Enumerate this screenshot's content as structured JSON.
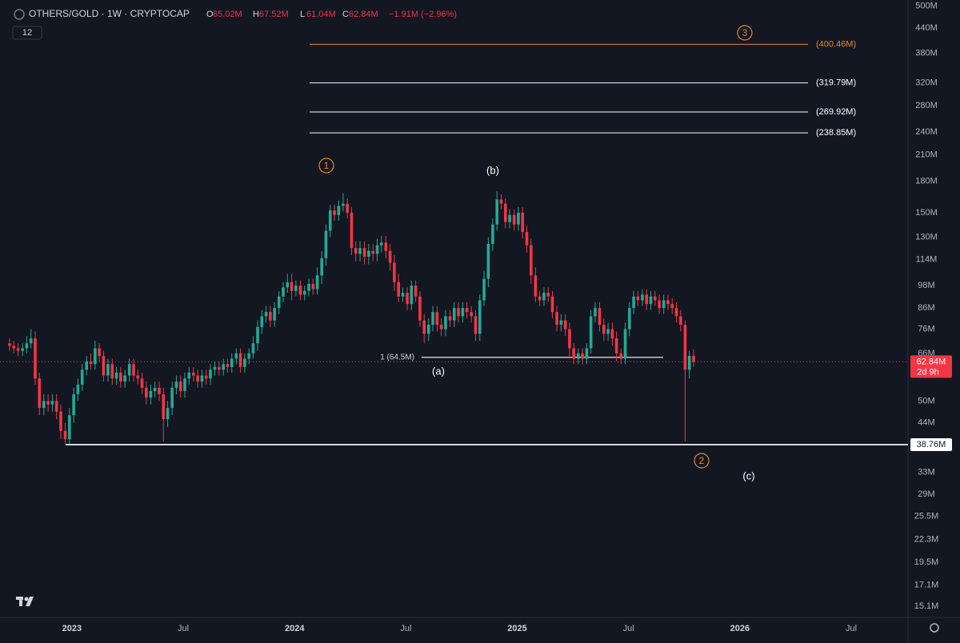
{
  "chart_data": {
    "type": "candlestick",
    "log_scale": true,
    "grid": false,
    "up_color": "#22ab94",
    "down_color": "#f23645",
    "header": {
      "symbol": "OTHERS/GOLD · 1W · CRYPTOCAP",
      "badge": "12",
      "ohlc": [
        {
          "key": "O",
          "text": "65.02M"
        },
        {
          "key": "H",
          "text": "67.52M"
        },
        {
          "key": "L",
          "text": "61.04M"
        },
        {
          "key": "C",
          "text": "62.84M"
        }
      ],
      "change": "−1.91M (−2.96%)"
    },
    "xlim": [
      2022.677,
      2026.755
    ],
    "ylim": [
      14.28,
      518.6
    ],
    "xticks": [
      2023,
      {
        "value": 2023.5,
        "label": "Jul"
      },
      2024,
      {
        "value": 2024.5,
        "label": "Jul"
      },
      2025,
      {
        "value": 2025.5,
        "label": "Jul"
      },
      2026,
      {
        "value": 2026.5,
        "label": "Jul"
      }
    ],
    "yticks": [
      {
        "value": 500,
        "label": "500M"
      },
      {
        "value": 440,
        "label": "440M"
      },
      {
        "value": 380,
        "label": "380M"
      },
      {
        "value": 320,
        "label": "320M"
      },
      {
        "value": 280,
        "label": "280M"
      },
      {
        "value": 240,
        "label": "240M"
      },
      {
        "value": 210,
        "label": "210M"
      },
      {
        "value": 180,
        "label": "180M"
      },
      {
        "value": 150,
        "label": "150M"
      },
      {
        "value": 130,
        "label": "130M"
      },
      {
        "value": 114,
        "label": "114M"
      },
      {
        "value": 98,
        "label": "98M"
      },
      {
        "value": 86,
        "label": "86M"
      },
      {
        "value": 76,
        "label": "76M"
      },
      {
        "value": 66,
        "label": "66M"
      },
      {
        "value": 58,
        "label": "58M"
      },
      {
        "value": 50,
        "label": "50M"
      },
      {
        "value": 44,
        "label": "44M"
      },
      {
        "value": 38,
        "label": "38M"
      },
      {
        "value": 33,
        "label": "33M"
      },
      {
        "value": 29,
        "label": "29M"
      },
      {
        "value": 25.5,
        "label": "25.5M"
      },
      {
        "value": 22.3,
        "label": "22.3M"
      },
      {
        "value": 19.5,
        "label": "19.5M"
      },
      {
        "value": 17.1,
        "label": "17.1M"
      },
      {
        "value": 15.1,
        "label": "15.1M"
      }
    ],
    "x": [
      2022.72,
      2022.739,
      2022.758,
      2022.778,
      2022.797,
      2022.816,
      2022.835,
      2022.854,
      2022.874,
      2022.893,
      2022.912,
      2022.931,
      2022.95,
      2022.97,
      2022.989,
      2023.008,
      2023.027,
      2023.046,
      2023.066,
      2023.085,
      2023.104,
      2023.123,
      2023.142,
      2023.162,
      2023.181,
      2023.2,
      2023.219,
      2023.238,
      2023.258,
      2023.277,
      2023.296,
      2023.315,
      2023.334,
      2023.354,
      2023.373,
      2023.392,
      2023.411,
      2023.43,
      2023.45,
      2023.469,
      2023.488,
      2023.507,
      2023.526,
      2023.546,
      2023.565,
      2023.584,
      2023.603,
      2023.622,
      2023.642,
      2023.661,
      2023.68,
      2023.699,
      2023.718,
      2023.738,
      2023.757,
      2023.776,
      2023.795,
      2023.814,
      2023.834,
      2023.853,
      2023.872,
      2023.891,
      2023.91,
      2023.93,
      2023.949,
      2023.968,
      2023.987,
      2024.006,
      2024.026,
      2024.045,
      2024.064,
      2024.083,
      2024.102,
      2024.122,
      2024.141,
      2024.16,
      2024.179,
      2024.198,
      2024.218,
      2024.237,
      2024.256,
      2024.275,
      2024.294,
      2024.314,
      2024.333,
      2024.352,
      2024.371,
      2024.39,
      2024.41,
      2024.429,
      2024.448,
      2024.467,
      2024.486,
      2024.506,
      2024.525,
      2024.544,
      2024.563,
      2024.582,
      2024.602,
      2024.621,
      2024.64,
      2024.659,
      2024.678,
      2024.698,
      2024.717,
      2024.736,
      2024.755,
      2024.774,
      2024.794,
      2024.813,
      2024.832,
      2024.851,
      2024.87,
      2024.89,
      2024.909,
      2024.928,
      2024.947,
      2024.966,
      2024.986,
      2025.005,
      2025.024,
      2025.043,
      2025.062,
      2025.082,
      2025.101,
      2025.12,
      2025.139,
      2025.158,
      2025.178,
      2025.197,
      2025.216,
      2025.235,
      2025.254,
      2025.274,
      2025.293,
      2025.312,
      2025.331,
      2025.35,
      2025.37,
      2025.389,
      2025.408,
      2025.427,
      2025.446,
      2025.466,
      2025.485,
      2025.504,
      2025.523,
      2025.542,
      2025.562,
      2025.581,
      2025.6,
      2025.619,
      2025.638,
      2025.658,
      2025.677,
      2025.696,
      2025.715,
      2025.734,
      2025.754,
      2025.773,
      2025.792
    ],
    "open": [
      70,
      69,
      68,
      67,
      68,
      70,
      72,
      57,
      48,
      50,
      49,
      50,
      47,
      42,
      40,
      46,
      52,
      55,
      60,
      63,
      62,
      68,
      65,
      58,
      62,
      57,
      59,
      56,
      58,
      62,
      58,
      57,
      54,
      51,
      53,
      54,
      52,
      45,
      48,
      54,
      56,
      53,
      57,
      59,
      58,
      56,
      58,
      57,
      60,
      61,
      60,
      62,
      61,
      64,
      66,
      61,
      64,
      66,
      70,
      77,
      82,
      84,
      80,
      86,
      92,
      97,
      100,
      95,
      98,
      93,
      95,
      99,
      96,
      104,
      115,
      135,
      152,
      148,
      156,
      158,
      150,
      122,
      118,
      122,
      116,
      120,
      118,
      124,
      126,
      120,
      112,
      100,
      92,
      94,
      88,
      98,
      92,
      80,
      74,
      78,
      84,
      78,
      76,
      82,
      80,
      86,
      82,
      86,
      84,
      82,
      74,
      90,
      102,
      125,
      140,
      162,
      158,
      142,
      148,
      140,
      150,
      134,
      124,
      104,
      92,
      90,
      94,
      92,
      84,
      78,
      80,
      76,
      68,
      64,
      66,
      64,
      68,
      82,
      86,
      78,
      74,
      76,
      72,
      66,
      64,
      76,
      86,
      92,
      90,
      93,
      88,
      92,
      90,
      86,
      90,
      88,
      86,
      82,
      78,
      60,
      65.02
    ],
    "high": [
      72,
      71,
      70,
      70,
      73,
      76,
      75,
      59,
      52,
      52,
      52,
      52,
      49,
      44,
      48,
      54,
      57,
      62,
      65,
      66,
      71,
      70,
      67,
      64,
      64,
      61,
      61,
      60,
      64,
      64,
      60,
      59,
      56,
      55,
      56,
      56,
      54,
      50,
      56,
      58,
      58,
      59,
      61,
      61,
      60,
      60,
      60,
      62,
      63,
      63,
      64,
      64,
      66,
      68,
      68,
      66,
      68,
      73,
      80,
      85,
      87,
      87,
      89,
      95,
      100,
      105,
      105,
      101,
      101,
      98,
      102,
      102,
      109,
      120,
      140,
      157,
      157,
      161,
      168,
      163,
      155,
      127,
      127,
      127,
      125,
      125,
      129,
      131,
      131,
      125,
      117,
      105,
      97,
      97,
      101,
      101,
      95,
      83,
      81,
      87,
      87,
      81,
      85,
      85,
      89,
      89,
      89,
      89,
      87,
      85,
      93,
      107,
      130,
      145,
      170,
      167,
      163,
      153,
      153,
      155,
      155,
      139,
      129,
      109,
      95,
      97,
      97,
      95,
      87,
      83,
      83,
      79,
      70,
      68,
      68,
      70,
      85,
      89,
      89,
      81,
      79,
      79,
      75,
      68,
      79,
      89,
      95,
      95,
      96,
      96,
      95,
      95,
      93,
      93,
      93,
      91,
      89,
      85,
      80,
      67,
      67.52
    ],
    "low": [
      67,
      66,
      65,
      65,
      66,
      68,
      55,
      46,
      46,
      47,
      47,
      45,
      40,
      39,
      39,
      44,
      50,
      53,
      58,
      60,
      60,
      63,
      56,
      56,
      55,
      55,
      54,
      54,
      56,
      56,
      55,
      52,
      49,
      49,
      51,
      50,
      39.5,
      43,
      46,
      52,
      51,
      51,
      55,
      56,
      54,
      54,
      55,
      55,
      58,
      58,
      58,
      59,
      59,
      62,
      59,
      59,
      62,
      64,
      67,
      74,
      79,
      77,
      77,
      83,
      89,
      94,
      90,
      92,
      90,
      90,
      92,
      93,
      93,
      99,
      110,
      130,
      143,
      143,
      151,
      145,
      117,
      113,
      113,
      111,
      111,
      113,
      113,
      119,
      115,
      107,
      95,
      89,
      89,
      85,
      85,
      89,
      77,
      70,
      71,
      75,
      75,
      73,
      73,
      77,
      77,
      79,
      79,
      81,
      79,
      71,
      71,
      87,
      97,
      120,
      135,
      153,
      137,
      137,
      135,
      135,
      129,
      119,
      99,
      89,
      87,
      87,
      89,
      81,
      75,
      75,
      73,
      65,
      62,
      62,
      62,
      62,
      66,
      79,
      75,
      71,
      71,
      69,
      63,
      62,
      62,
      73,
      83,
      87,
      87,
      85,
      85,
      87,
      83,
      83,
      85,
      83,
      79,
      75,
      39.5,
      57,
      61.04
    ],
    "close": [
      69,
      68,
      67,
      68,
      70,
      72,
      57,
      48,
      50,
      49,
      50,
      47,
      42,
      40,
      46,
      52,
      55,
      60,
      63,
      62,
      68,
      65,
      58,
      62,
      57,
      59,
      56,
      58,
      62,
      58,
      57,
      54,
      51,
      53,
      54,
      52,
      45,
      48,
      54,
      56,
      53,
      57,
      59,
      58,
      56,
      58,
      57,
      60,
      61,
      60,
      62,
      61,
      64,
      66,
      61,
      64,
      66,
      70,
      77,
      82,
      84,
      80,
      86,
      92,
      97,
      100,
      95,
      98,
      93,
      95,
      99,
      96,
      104,
      115,
      135,
      152,
      148,
      156,
      158,
      150,
      122,
      118,
      122,
      116,
      120,
      118,
      124,
      126,
      120,
      112,
      100,
      92,
      94,
      88,
      98,
      92,
      80,
      74,
      78,
      84,
      78,
      76,
      82,
      80,
      86,
      82,
      86,
      84,
      82,
      74,
      90,
      102,
      125,
      140,
      162,
      158,
      142,
      148,
      140,
      150,
      134,
      124,
      104,
      92,
      90,
      94,
      92,
      84,
      78,
      80,
      76,
      68,
      64,
      66,
      64,
      68,
      82,
      86,
      78,
      74,
      76,
      72,
      66,
      64,
      76,
      86,
      92,
      90,
      93,
      88,
      92,
      90,
      86,
      90,
      88,
      86,
      82,
      78,
      60,
      65.02,
      62.84
    ],
    "fib_levels": [
      {
        "value": 400.46,
        "label": "(400.46M)",
        "color": "#e8872a"
      },
      {
        "value": 319.79,
        "label": "(319.79M)",
        "color": "#ffffff"
      },
      {
        "value": 269.92,
        "label": "(269.92M)",
        "color": "#ffffff"
      },
      {
        "value": 238.85,
        "label": "(238.85M)",
        "color": "#ffffff"
      }
    ],
    "support_level": {
      "value": 64.5,
      "label": "1 (64.5M)"
    },
    "base_level": {
      "value": 38.76,
      "label": "38.76M"
    },
    "last_price": {
      "value": 62.84,
      "label": "62.84M",
      "countdown": "2d 9h"
    },
    "wave_labels": [
      {
        "text": "1",
        "color": "#e8872a"
      },
      {
        "text": "(b)",
        "color": "#ffffff"
      },
      {
        "text": "(a)",
        "color": "#ffffff"
      },
      {
        "text": "3",
        "color": "#e8872a"
      },
      {
        "text": "2",
        "color": "#e8872a"
      },
      {
        "text": "(c)",
        "color": "#ffffff"
      }
    ]
  }
}
